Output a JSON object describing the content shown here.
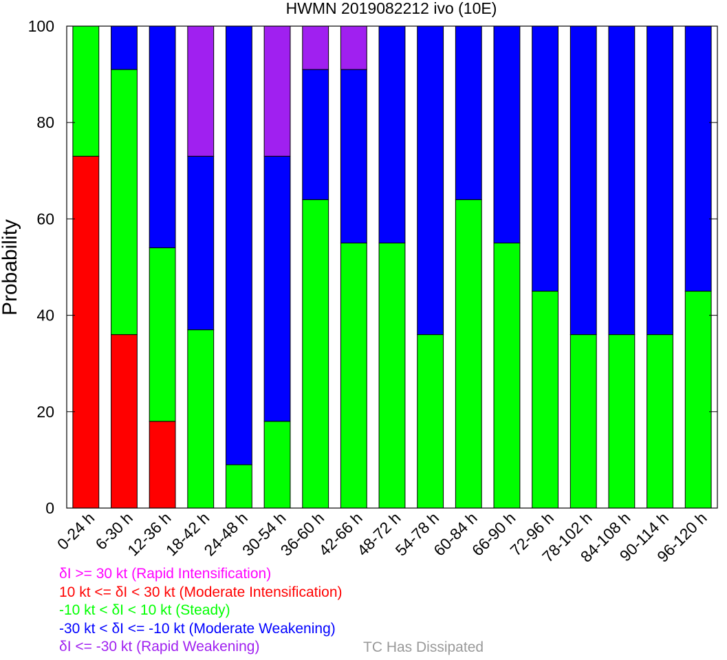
{
  "chart_data": {
    "type": "bar",
    "stacked": true,
    "title": "HWMN 2019082212 ivo (10E)",
    "xlabel": "",
    "ylabel": "Probability",
    "ylim": [
      0,
      100
    ],
    "yticks": [
      "0",
      "20",
      "40",
      "60",
      "80",
      "100"
    ],
    "grid": false,
    "categories": [
      "0-24 h",
      "6-30 h",
      "12-36 h",
      "18-42 h",
      "24-48 h",
      "30-54 h",
      "36-60 h",
      "42-66 h",
      "48-72 h",
      "54-78 h",
      "60-84 h",
      "66-90 h",
      "72-96 h",
      "78-102 h",
      "84-108 h",
      "90-114 h",
      "96-120 h"
    ],
    "series": [
      {
        "name": "δI >= 30 kt (Rapid Intensification)",
        "values": [
          0,
          0,
          0,
          0,
          0,
          0,
          0,
          0,
          0,
          0,
          0,
          0,
          0,
          0,
          0,
          0,
          0
        ]
      },
      {
        "name": "10 kt <= δI < 30 kt (Moderate Intensification)",
        "values": [
          73,
          36,
          18,
          0,
          0,
          0,
          0,
          0,
          0,
          0,
          0,
          0,
          0,
          0,
          0,
          0,
          0
        ]
      },
      {
        "name": "-10 kt < δI < 10 kt (Steady)",
        "values": [
          27,
          55,
          36,
          37,
          9,
          18,
          64,
          55,
          55,
          36,
          64,
          55,
          45,
          36,
          36,
          36,
          45
        ]
      },
      {
        "name": "-30 kt < δI <= -10 kt (Moderate Weakening)",
        "values": [
          0,
          9,
          46,
          36,
          91,
          55,
          27,
          36,
          45,
          64,
          36,
          45,
          55,
          64,
          64,
          64,
          55
        ]
      },
      {
        "name": "δI <= -30 kt (Rapid Weakening)",
        "values": [
          0,
          0,
          0,
          27,
          0,
          27,
          9,
          9,
          0,
          0,
          0,
          0,
          0,
          0,
          0,
          0,
          0
        ]
      }
    ],
    "stack_order": [
      "10 kt <= δI < 30 kt (Moderate Intensification)",
      "-10 kt < δI < 10 kt (Steady)",
      "-30 kt < δI <= -10 kt (Moderate Weakening)",
      "δI >= 30 kt (Rapid Intensification)",
      "δI <= -30 kt (Rapid Weakening)"
    ],
    "colors": {
      "δI >= 30 kt (Rapid Intensification)": "#ff00ff",
      "10 kt <= δI < 30 kt (Moderate Intensification)": "#ff0000",
      "-10 kt < δI < 10 kt (Steady)": "#00ff00",
      "-30 kt < δI <= -10 kt (Moderate Weakening)": "#0000ff",
      "δI <= -30 kt (Rapid Weakening)": "#a020f0"
    },
    "legend": [
      {
        "label": "δI >= 30 kt (Rapid Intensification)",
        "color": "#ff00ff"
      },
      {
        "label": "10 kt <= δI < 30 kt (Moderate Intensification)",
        "color": "#ff0000"
      },
      {
        "label": "-10 kt < δI < 10 kt (Steady)",
        "color": "#00ff00"
      },
      {
        "label": "-30 kt < δI <= -10 kt (Moderate Weakening)",
        "color": "#0000ff"
      },
      {
        "label": "δI <= -30 kt (Rapid Weakening)",
        "color": "#a020f0"
      }
    ],
    "legend_position": "bottom-left",
    "note": {
      "label": "TC Has Dissipated",
      "color": "#999999"
    }
  }
}
